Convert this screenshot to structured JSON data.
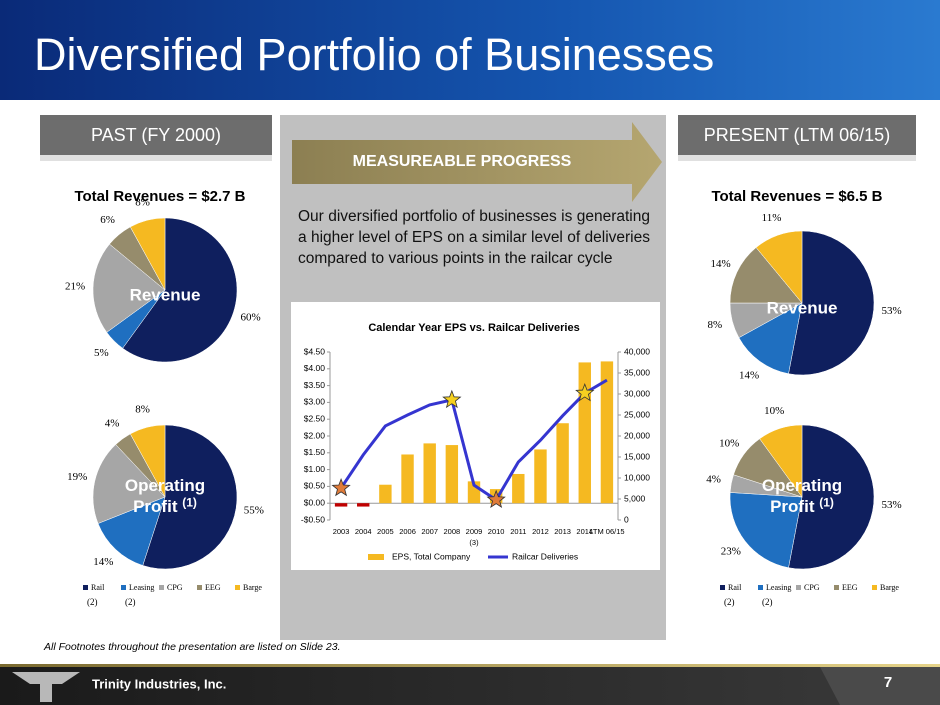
{
  "header": {
    "title": "Diversified Portfolio of Businesses"
  },
  "left_panel": {
    "heading": "PAST (FY 2000)",
    "total": "Total Revenues = $2.7 B"
  },
  "right_panel": {
    "heading": "PRESENT (LTM 06/15)",
    "total": "Total Revenues = $6.5 B"
  },
  "middle_panel": {
    "arrow_label": "MEASUREABLE PROGRESS",
    "text": "Our diversified portfolio of businesses is generating a higher level of EPS on a similar level of deliveries compared to various points in the railcar cycle"
  },
  "footnote": "All Footnotes throughout the presentation are listed on Slide 23.",
  "footer": {
    "company": "Trinity Industries, Inc.",
    "page": "7"
  },
  "chart_data": [
    {
      "type": "pie",
      "center_label": [
        "Revenue"
      ],
      "categories": [
        "Rail",
        "Leasing",
        "CPG",
        "EEG",
        "Barge"
      ],
      "colors": [
        "#0f1f5e",
        "#1f6fc0",
        "#a6a6a6",
        "#968c6c",
        "#f5b921"
      ],
      "values": [
        60,
        5,
        21,
        6,
        8
      ],
      "value_labels": [
        "60%",
        "5%",
        "21%",
        "6%",
        "8%"
      ]
    },
    {
      "type": "pie",
      "center_label": [
        "Operating",
        "Profit"
      ],
      "center_note": "(1)",
      "categories": [
        "Rail",
        "Leasing",
        "CPG",
        "EEG",
        "Barge"
      ],
      "colors": [
        "#0f1f5e",
        "#1f6fc0",
        "#a6a6a6",
        "#968c6c",
        "#f5b921"
      ],
      "values": [
        55,
        14,
        19,
        4,
        8
      ],
      "value_labels": [
        "55%",
        "14%",
        "19%",
        "4%",
        "8%"
      ],
      "legend": true,
      "legend_notes": [
        "(2)",
        "(2)"
      ]
    },
    {
      "type": "pie",
      "center_label": [
        "Revenue"
      ],
      "categories": [
        "Rail",
        "Leasing",
        "CPG",
        "EEG",
        "Barge"
      ],
      "colors": [
        "#0f1f5e",
        "#1f6fc0",
        "#a6a6a6",
        "#968c6c",
        "#f5b921"
      ],
      "values": [
        53,
        14,
        8,
        14,
        11
      ],
      "value_labels": [
        "53%",
        "14%",
        "8%",
        "14%",
        "11%"
      ]
    },
    {
      "type": "pie",
      "center_label": [
        "Operating",
        "Profit"
      ],
      "center_note": "(1)",
      "categories": [
        "Rail",
        "Leasing",
        "CPG",
        "EEG",
        "Barge"
      ],
      "colors": [
        "#0f1f5e",
        "#1f6fc0",
        "#a6a6a6",
        "#968c6c",
        "#f5b921"
      ],
      "values": [
        53,
        23,
        4,
        10,
        10
      ],
      "value_labels": [
        "53%",
        "23%",
        "4%",
        "10%",
        "10%"
      ],
      "legend": true,
      "legend_notes": [
        "(2)",
        "(2)"
      ]
    },
    {
      "type": "combo",
      "title": "Calendar Year EPS vs. Railcar Deliveries",
      "categories": [
        "2003",
        "2004",
        "2005",
        "2006",
        "2007",
        "2008",
        "2009",
        "2010",
        "2011",
        "2012",
        "2013",
        "2014",
        "LTM 06/15"
      ],
      "category_notes": {
        "2009": "(3)"
      },
      "series": [
        {
          "name": "EPS, Total Company",
          "kind": "bar",
          "color": "#f5b921",
          "negative_color": "#c00000",
          "values": [
            -0.1,
            -0.1,
            0.55,
            1.45,
            1.78,
            1.73,
            0.65,
            0.42,
            0.87,
            1.6,
            2.38,
            4.19,
            4.22
          ]
        },
        {
          "name": "Railcar Deliveries",
          "kind": "line",
          "color": "#3535d0",
          "axis": "y2",
          "values": [
            7600,
            15500,
            22400,
            25000,
            27400,
            28600,
            8300,
            4800,
            13800,
            19000,
            24800,
            30200,
            33300
          ]
        }
      ],
      "stars": [
        {
          "category": "2003",
          "color": "#e07b39"
        },
        {
          "category": "2008",
          "color": "#f5d020"
        },
        {
          "category": "2010",
          "color": "#e07b39"
        },
        {
          "category": "2014",
          "color": "#f5d020"
        }
      ],
      "ylim": [
        -0.5,
        4.5
      ],
      "yticks": [
        {
          "value": -0.5,
          "label": "-$0.50"
        },
        {
          "value": 0,
          "label": "$0.00"
        },
        {
          "value": 0.5,
          "label": "$0.50"
        },
        {
          "value": 1,
          "label": "$1.00"
        },
        {
          "value": 1.5,
          "label": "$1.50"
        },
        {
          "value": 2,
          "label": "$2.00"
        },
        {
          "value": 2.5,
          "label": "$2.50"
        },
        {
          "value": 3,
          "label": "$3.00"
        },
        {
          "value": 3.5,
          "label": "$3.50"
        },
        {
          "value": 4,
          "label": "$4.00"
        },
        {
          "value": 4.5,
          "label": "$4.50"
        }
      ],
      "y2lim": [
        0,
        40000
      ],
      "y2ticks": [
        0,
        {
          "value": 5000,
          "label": "5,000"
        },
        {
          "value": 10000,
          "label": "10,000"
        },
        {
          "value": 15000,
          "label": "15,000"
        },
        {
          "value": 20000,
          "label": "20,000"
        },
        {
          "value": 25000,
          "label": "25,000"
        },
        {
          "value": 30000,
          "label": "30,000"
        },
        {
          "value": 35000,
          "label": "35,000"
        },
        {
          "value": 40000,
          "label": "40,000"
        }
      ]
    }
  ]
}
